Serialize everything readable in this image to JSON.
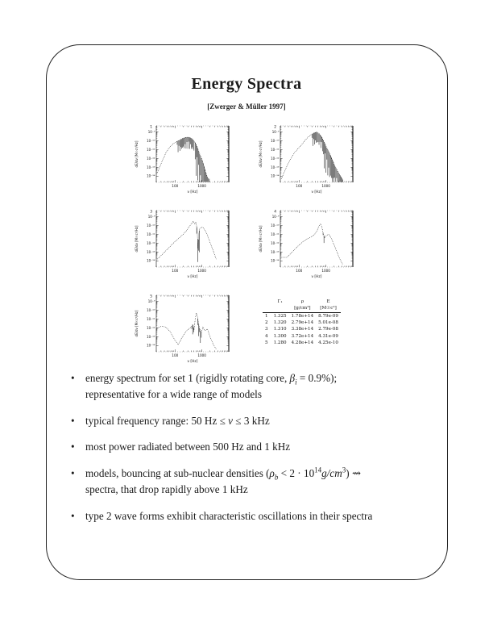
{
  "slide": {
    "title": "Energy Spectra",
    "citation": "[Zwerger & Müller 1997]",
    "bullet_char": "•",
    "ink_color": "#1a1a1a",
    "background_color": "#ffffff"
  },
  "figure": {
    "xlabel": "ν [Hz]",
    "ylabel": "dE/dν [M☉c²/Hz]",
    "xticks": [
      {
        "value": 100,
        "label": "100"
      },
      {
        "value": 1000,
        "label": "1000"
      }
    ],
    "yticks": [
      {
        "value": -9,
        "label": "10⁻⁹"
      },
      {
        "value": -10,
        "label": "10⁻¹⁰"
      },
      {
        "value": -11,
        "label": "10⁻¹¹"
      },
      {
        "value": -12,
        "label": "10⁻¹²"
      },
      {
        "value": -13,
        "label": "10⁻¹³"
      },
      {
        "value": -14,
        "label": "10⁻¹⁴"
      }
    ],
    "xlim_hz": [
      20,
      10000
    ],
    "ylim_log10": [
      -14.7,
      -8.3
    ],
    "axes_scale": "log-log",
    "grid": false,
    "legend": false
  },
  "chart_data": [
    {
      "type": "line",
      "name": "energy spectrum, model 1",
      "panel_label": "1",
      "xlabel": "ν [Hz]",
      "ylabel": "dE/dν [M☉c²/Hz]",
      "xlim": [
        20,
        10000
      ],
      "ylim_log10": [
        -14.7,
        -8.3
      ],
      "points_hz_log10E": [
        [
          22,
          -13.6
        ],
        [
          30,
          -12.6
        ],
        [
          45,
          -11.4
        ],
        [
          60,
          -10.8
        ],
        [
          80,
          -10.4
        ],
        [
          110,
          -10.1
        ],
        [
          150,
          -9.9
        ],
        [
          200,
          -9.7
        ],
        [
          260,
          -9.6
        ],
        [
          330,
          -9.6
        ],
        [
          400,
          -9.7
        ],
        [
          480,
          -9.9
        ],
        [
          560,
          -10.2
        ],
        [
          650,
          -10.6
        ],
        [
          750,
          -11.1
        ],
        [
          850,
          -11.6
        ],
        [
          1000,
          -12.1
        ],
        [
          1200,
          -12.9
        ],
        [
          1400,
          -13.6
        ],
        [
          1700,
          -14.3
        ]
      ],
      "noise": [
        {
          "x0": 120,
          "x1": 520,
          "depth": 1.3
        },
        {
          "x0": 560,
          "x1": 1900,
          "depth": 3.6
        }
      ]
    },
    {
      "type": "line",
      "name": "energy spectrum, model 2",
      "panel_label": "2",
      "xlabel": "ν [Hz]",
      "ylabel": "dE/dν [M☉c²/Hz]",
      "xlim": [
        20,
        10000
      ],
      "ylim_log10": [
        -14.7,
        -8.3
      ],
      "points_hz_log10E": [
        [
          22,
          -14.3
        ],
        [
          30,
          -13.3
        ],
        [
          45,
          -12.2
        ],
        [
          65,
          -11.4
        ],
        [
          90,
          -10.9
        ],
        [
          120,
          -10.5
        ],
        [
          160,
          -10.0
        ],
        [
          210,
          -9.6
        ],
        [
          280,
          -9.3
        ],
        [
          360,
          -9.1
        ],
        [
          450,
          -9.0
        ],
        [
          560,
          -9.2
        ],
        [
          700,
          -9.6
        ],
        [
          850,
          -10.1
        ],
        [
          1000,
          -10.6
        ],
        [
          1300,
          -11.3
        ],
        [
          1700,
          -12.1
        ],
        [
          2200,
          -12.9
        ],
        [
          3000,
          -13.7
        ],
        [
          4200,
          -14.4
        ]
      ],
      "noise": [
        {
          "x0": 300,
          "x1": 800,
          "depth": 1.4
        },
        {
          "x0": 800,
          "x1": 4500,
          "depth": 3.0
        }
      ]
    },
    {
      "type": "line",
      "name": "energy spectrum, model 3",
      "panel_label": "3",
      "xlabel": "ν [Hz]",
      "ylabel": "dE/dν [M☉c²/Hz]",
      "xlim": [
        20,
        10000
      ],
      "ylim_log10": [
        -14.7,
        -8.3
      ],
      "points_hz_log10E": [
        [
          22,
          -13.8
        ],
        [
          35,
          -13.2
        ],
        [
          55,
          -12.6
        ],
        [
          85,
          -12.0
        ],
        [
          130,
          -11.5
        ],
        [
          200,
          -11.0
        ],
        [
          280,
          -10.5
        ],
        [
          380,
          -9.9
        ],
        [
          480,
          -9.5
        ],
        [
          540,
          -9.8
        ],
        [
          600,
          -9.6
        ],
        [
          660,
          -10.4
        ],
        [
          720,
          -12.6
        ],
        [
          760,
          -11.0
        ],
        [
          820,
          -10.4
        ],
        [
          950,
          -10.2
        ],
        [
          1100,
          -10.2
        ],
        [
          1300,
          -10.5
        ],
        [
          1600,
          -11.1
        ],
        [
          2000,
          -11.9
        ],
        [
          2600,
          -12.8
        ],
        [
          3400,
          -13.8
        ]
      ],
      "noise": [
        {
          "x0": 640,
          "x1": 820,
          "depth": 2.6
        }
      ]
    },
    {
      "type": "line",
      "name": "energy spectrum, model 4",
      "panel_label": "4",
      "xlabel": "ν [Hz]",
      "ylabel": "dE/dν [M☉c²/Hz]",
      "xlim": [
        20,
        10000
      ],
      "ylim_log10": [
        -14.7,
        -8.3
      ],
      "points_hz_log10E": [
        [
          22,
          -13.6
        ],
        [
          35,
          -13.6
        ],
        [
          55,
          -13.0
        ],
        [
          85,
          -12.4
        ],
        [
          130,
          -11.9
        ],
        [
          200,
          -11.5
        ],
        [
          280,
          -11.3
        ],
        [
          380,
          -11.0
        ],
        [
          480,
          -10.5
        ],
        [
          560,
          -10.0
        ],
        [
          640,
          -9.8
        ],
        [
          720,
          -10.3
        ],
        [
          800,
          -11.0
        ],
        [
          900,
          -11.4
        ],
        [
          1050,
          -11.1
        ],
        [
          1250,
          -11.0
        ],
        [
          1500,
          -11.3
        ],
        [
          1900,
          -12.0
        ],
        [
          2500,
          -12.9
        ],
        [
          3300,
          -13.8
        ],
        [
          4200,
          -14.4
        ]
      ],
      "noise": [
        {
          "x0": 780,
          "x1": 900,
          "depth": 0.8
        }
      ]
    },
    {
      "type": "line",
      "name": "energy spectrum, model 5",
      "panel_label": "5",
      "xlabel": "ν [Hz]",
      "ylabel": "dE/dν [M☉c²/Hz]",
      "xlim": [
        20,
        10000
      ],
      "ylim_log10": [
        -14.7,
        -8.3
      ],
      "points_hz_log10E": [
        [
          22,
          -12.0
        ],
        [
          32,
          -11.8
        ],
        [
          45,
          -11.9
        ],
        [
          65,
          -12.4
        ],
        [
          95,
          -13.3
        ],
        [
          130,
          -13.9
        ],
        [
          180,
          -13.1
        ],
        [
          240,
          -12.5
        ],
        [
          320,
          -12.1
        ],
        [
          400,
          -11.9
        ],
        [
          460,
          -11.6
        ],
        [
          510,
          -12.2
        ],
        [
          560,
          -11.0
        ],
        [
          620,
          -10.3
        ],
        [
          680,
          -10.7
        ],
        [
          760,
          -11.6
        ],
        [
          850,
          -12.2
        ],
        [
          950,
          -12.5
        ],
        [
          1100,
          -11.9
        ],
        [
          1300,
          -12.3
        ],
        [
          1600,
          -12.1
        ],
        [
          2000,
          -13.0
        ],
        [
          2700,
          -13.9
        ],
        [
          3400,
          -14.4
        ]
      ],
      "noise": [
        {
          "x0": 420,
          "x1": 520,
          "depth": 1.1
        },
        {
          "x0": 700,
          "x1": 950,
          "depth": 1.4
        }
      ]
    }
  ],
  "table": {
    "headers": [
      {
        "top": "",
        "bot": ""
      },
      {
        "top": "Γ₁",
        "bot": ""
      },
      {
        "top": "ρ",
        "bot": "[g/cm³]"
      },
      {
        "top": "E",
        "bot": "[M☉c²]"
      }
    ],
    "rows": [
      [
        "1",
        "1.325",
        "1.78e+14",
        "8.79e-09"
      ],
      [
        "2",
        "1.320",
        "2.79e+14",
        "5.01e-08"
      ],
      [
        "3",
        "1.310",
        "3.38e+14",
        "2.79e-08"
      ],
      [
        "4",
        "1.300",
        "3.72e+14",
        "4.31e-09"
      ],
      [
        "5",
        "1.280",
        "4.28e+14",
        "4.25e-10"
      ]
    ]
  },
  "bullets": [
    [
      {
        "t": "energy spectrum for set 1 (rigidly rotating core, "
      },
      {
        "t": "β",
        "s": "i"
      },
      {
        "t": "i",
        "s": "sub"
      },
      {
        "t": " = 0.9%);"
      },
      {
        "s": "br"
      },
      {
        "t": "representative for a wide range of models"
      }
    ],
    [
      {
        "t": "typical frequency range: 50 Hz ≤ "
      },
      {
        "t": "ν",
        "s": "i"
      },
      {
        "t": " ≤ 3 kHz"
      }
    ],
    [
      {
        "t": "most power radiated between 500 Hz and 1 kHz"
      }
    ],
    [
      {
        "t": "models, bouncing at sub-nuclear densities ("
      },
      {
        "t": "ρ",
        "s": "i"
      },
      {
        "t": "b",
        "s": "sub"
      },
      {
        "t": " < 2 · 10"
      },
      {
        "t": "14",
        "s": "sup"
      },
      {
        "t": "g/cm",
        "s": "i"
      },
      {
        "t": "3",
        "s": "sup"
      },
      {
        "t": ") ⇝"
      },
      {
        "s": "br"
      },
      {
        "t": "spectra, that drop rapidly above 1 kHz"
      }
    ],
    [
      {
        "t": "type 2 wave forms exhibit characteristic oscillations in their spectra"
      }
    ]
  ]
}
